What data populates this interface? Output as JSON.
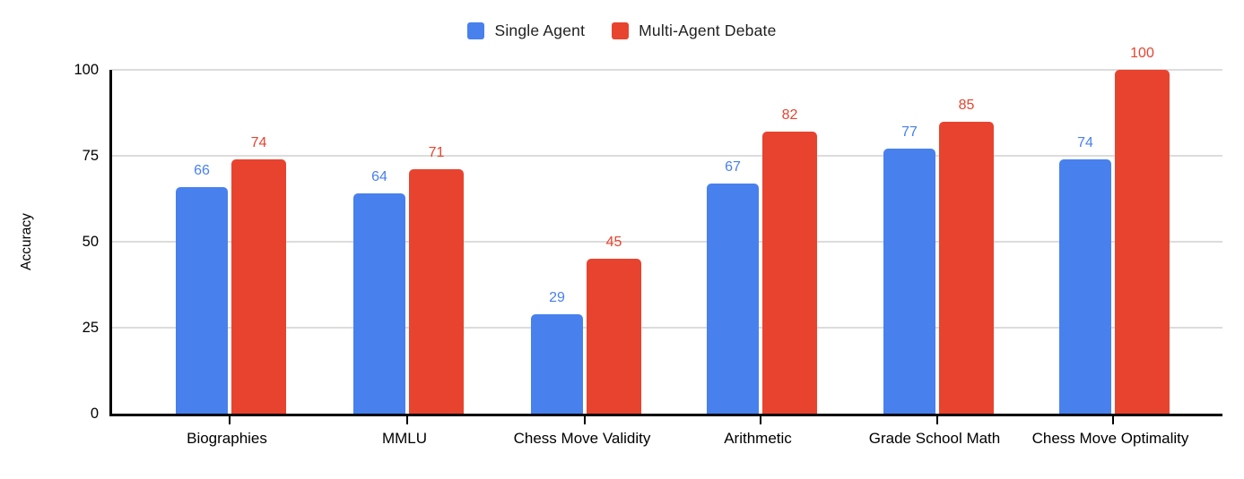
{
  "chart_data": {
    "type": "bar",
    "title": "",
    "categories": [
      "Biographies",
      "MMLU",
      "Chess Move Validity",
      "Arithmetic",
      "Grade School Math",
      "Chess Move Optimality"
    ],
    "series": [
      {
        "name": "Single Agent",
        "color": "#4880EE",
        "values": [
          66,
          64,
          29,
          67,
          77,
          74
        ]
      },
      {
        "name": "Multi-Agent Debate",
        "color": "#E8432F",
        "values": [
          74,
          71,
          45,
          82,
          85,
          100
        ]
      }
    ],
    "xlabel": "",
    "ylabel": "Accuracy",
    "ylim": [
      0,
      100
    ],
    "yticks": [
      0,
      25,
      50,
      75,
      100
    ],
    "grid": true,
    "legend_position": "top-center",
    "value_labels_shown": true,
    "colors": {
      "gridline": "#dcdcdc",
      "axis": "#000000",
      "text": "#000000"
    }
  }
}
